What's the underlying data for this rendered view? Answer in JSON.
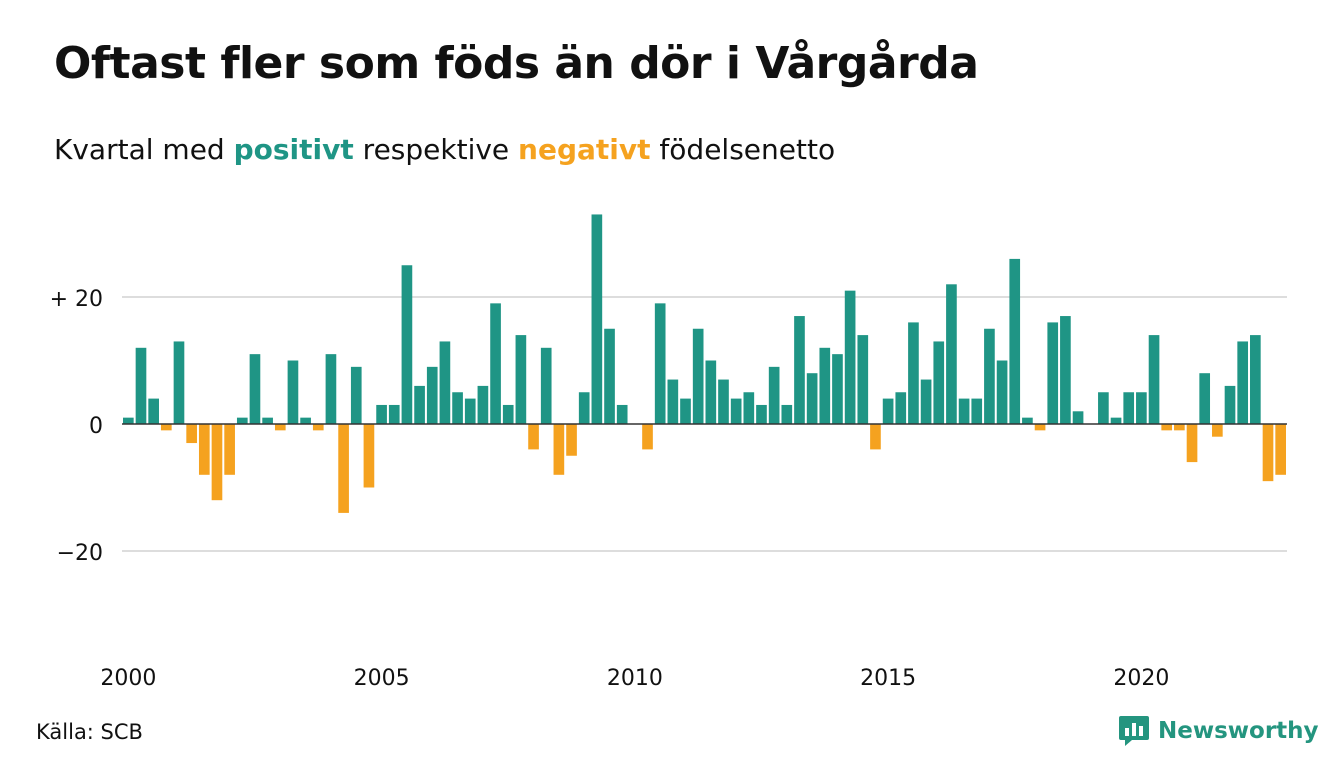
{
  "header": {
    "title": "Oftast fler som föds än dör i Vårgårda",
    "subtitle_before": "Kvartal med ",
    "subtitle_positive": "positivt",
    "subtitle_middle": " respektive ",
    "subtitle_negative": "negativt",
    "subtitle_after": " födelsenetto"
  },
  "footer": {
    "source": "Källa: SCB",
    "brand": "Newsworthy"
  },
  "colors": {
    "positive": "#1f9585",
    "negative": "#f5a21f",
    "grid": "#dddddd",
    "baseline": "#333333",
    "text": "#111111",
    "brand": "#24957f"
  },
  "icons": {
    "brand_logo": "newsworthy-chart-bubble-icon"
  },
  "chart_data": {
    "type": "bar",
    "title": "Oftast fler som föds än dör i Vårgårda",
    "subtitle": "Kvartal med positivt respektive negativt födelsenetto",
    "xlabel": "",
    "ylabel": "",
    "x_start": "2000 Q1",
    "x_end": "2022 Q4",
    "ylim": [
      -32,
      36
    ],
    "y_ticks": [
      {
        "value": 20,
        "label": "+ 20"
      },
      {
        "value": 0,
        "label": "0"
      },
      {
        "value": -20,
        "label": "−20"
      }
    ],
    "x_ticks": [
      "2000",
      "2005",
      "2010",
      "2015",
      "2020"
    ],
    "grid": true,
    "values": [
      1,
      12,
      4,
      -1,
      13,
      -3,
      -8,
      -12,
      -8,
      1,
      11,
      1,
      -1,
      10,
      1,
      -1,
      11,
      -14,
      9,
      -10,
      3,
      3,
      25,
      6,
      9,
      13,
      5,
      4,
      6,
      19,
      3,
      14,
      -4,
      12,
      -8,
      -5,
      5,
      33,
      15,
      3,
      0,
      -4,
      19,
      7,
      4,
      15,
      10,
      7,
      4,
      5,
      3,
      9,
      3,
      17,
      8,
      12,
      11,
      21,
      14,
      -4,
      4,
      5,
      16,
      7,
      13,
      22,
      4,
      4,
      15,
      10,
      26,
      1,
      -1,
      16,
      17,
      2,
      0,
      5,
      1,
      5,
      5,
      14,
      -1,
      -1,
      -6,
      8,
      -2,
      6,
      13,
      14,
      -9,
      -8
    ]
  }
}
